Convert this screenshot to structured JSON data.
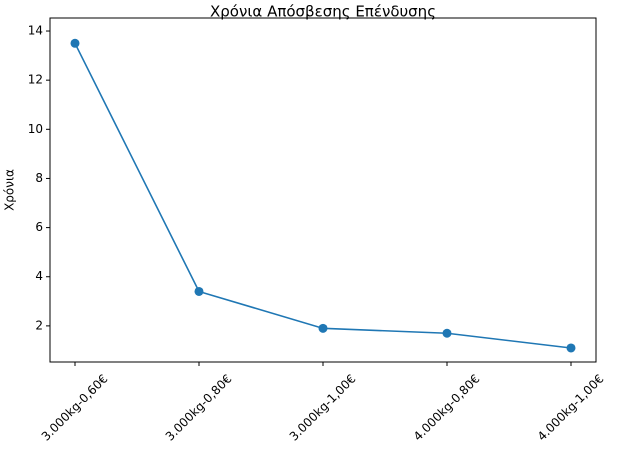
{
  "chart_data": {
    "type": "line",
    "title": "Χρόνια Απόσβεσης Επένδυσης",
    "y_label": "Χρόνια",
    "categories": [
      "3.000kg-0,60€",
      "3.000kg-0,80€",
      "3.000kg-1,00€",
      "4.000kg-0,80€",
      "4.000kg-1,00€"
    ],
    "values": [
      13.5,
      3.4,
      1.9,
      1.7,
      1.1
    ],
    "color": "#1f77b4",
    "ylim": [
      0.53,
      14.53
    ],
    "yticks": [
      2,
      4,
      6,
      8,
      10,
      12,
      14
    ],
    "grid": false,
    "markers": true
  }
}
